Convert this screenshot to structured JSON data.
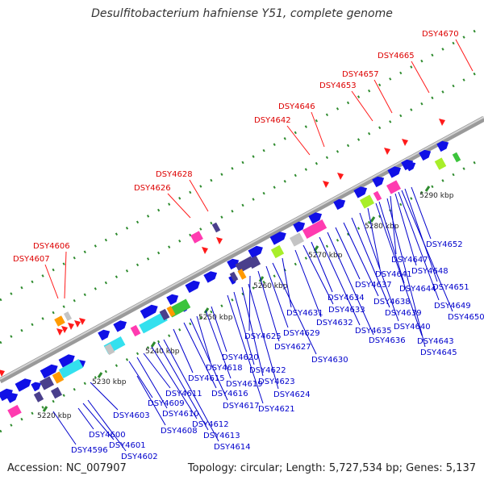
{
  "title": "Desulfitobacterium hafniense Y51, complete genome",
  "footer": {
    "accession": "Accession: NC_007907",
    "summary": "Topology: circular; Length: 5,727,534 bp; Genes: 5,137"
  },
  "ruler": {
    "unit": "kbp",
    "ticks": [
      "5220 kbp",
      "5230 kbp",
      "5240 kbp",
      "5250 kbp",
      "5260 kbp",
      "5270 kbp",
      "5280 kbp",
      "5290 kbp"
    ]
  },
  "labels_red": [
    "DSY4606",
    "DSY4607",
    "DSY4626",
    "DSY4628",
    "DSY4642",
    "DSY4646",
    "DSY4653",
    "DSY4657",
    "DSY4665",
    "DSY4670"
  ],
  "labels_blue": [
    "DSY4596",
    "DSY4600",
    "DSY4601",
    "DSY4602",
    "DSY4603",
    "DSY4608",
    "DSY4609",
    "DSY4610",
    "DSY4611",
    "DSY4612",
    "DSY4613",
    "DSY4614",
    "DSY4615",
    "DSY4616",
    "DSY4617",
    "DSY4618",
    "DSY4619",
    "DSY4620",
    "DSY4621",
    "DSY4622",
    "DSY4623",
    "DSY4624",
    "DSY4625",
    "DSY4627",
    "DSY4629",
    "DSY4630",
    "DSY4631",
    "DSY4632",
    "DSY4633",
    "DSY4634",
    "DSY4635",
    "DSY4636",
    "DSY4637",
    "DSY4638",
    "DSY4639",
    "DSY4640",
    "DSY4641",
    "DSY4643",
    "DSY4644",
    "DSY4645",
    "DSY4647",
    "DSY4648",
    "DSY4649",
    "DSY4650",
    "DSY4651",
    "DSY4652"
  ],
  "colors": {
    "backbone": "#8c8c8c",
    "gene_blue": "#1010e6",
    "rna_red": "#ff1a1a",
    "label_red": "#dd0000",
    "label_blue": "#0000cc",
    "dot_green": "#2e8b2e",
    "cyan": "#33e0ee",
    "magenta": "#ff3bb0",
    "lime": "#a8ee2a",
    "purple": "#4a3f8c",
    "gray": "#c4c4c4",
    "orange": "#ff9a00",
    "green": "#3cc43c"
  }
}
